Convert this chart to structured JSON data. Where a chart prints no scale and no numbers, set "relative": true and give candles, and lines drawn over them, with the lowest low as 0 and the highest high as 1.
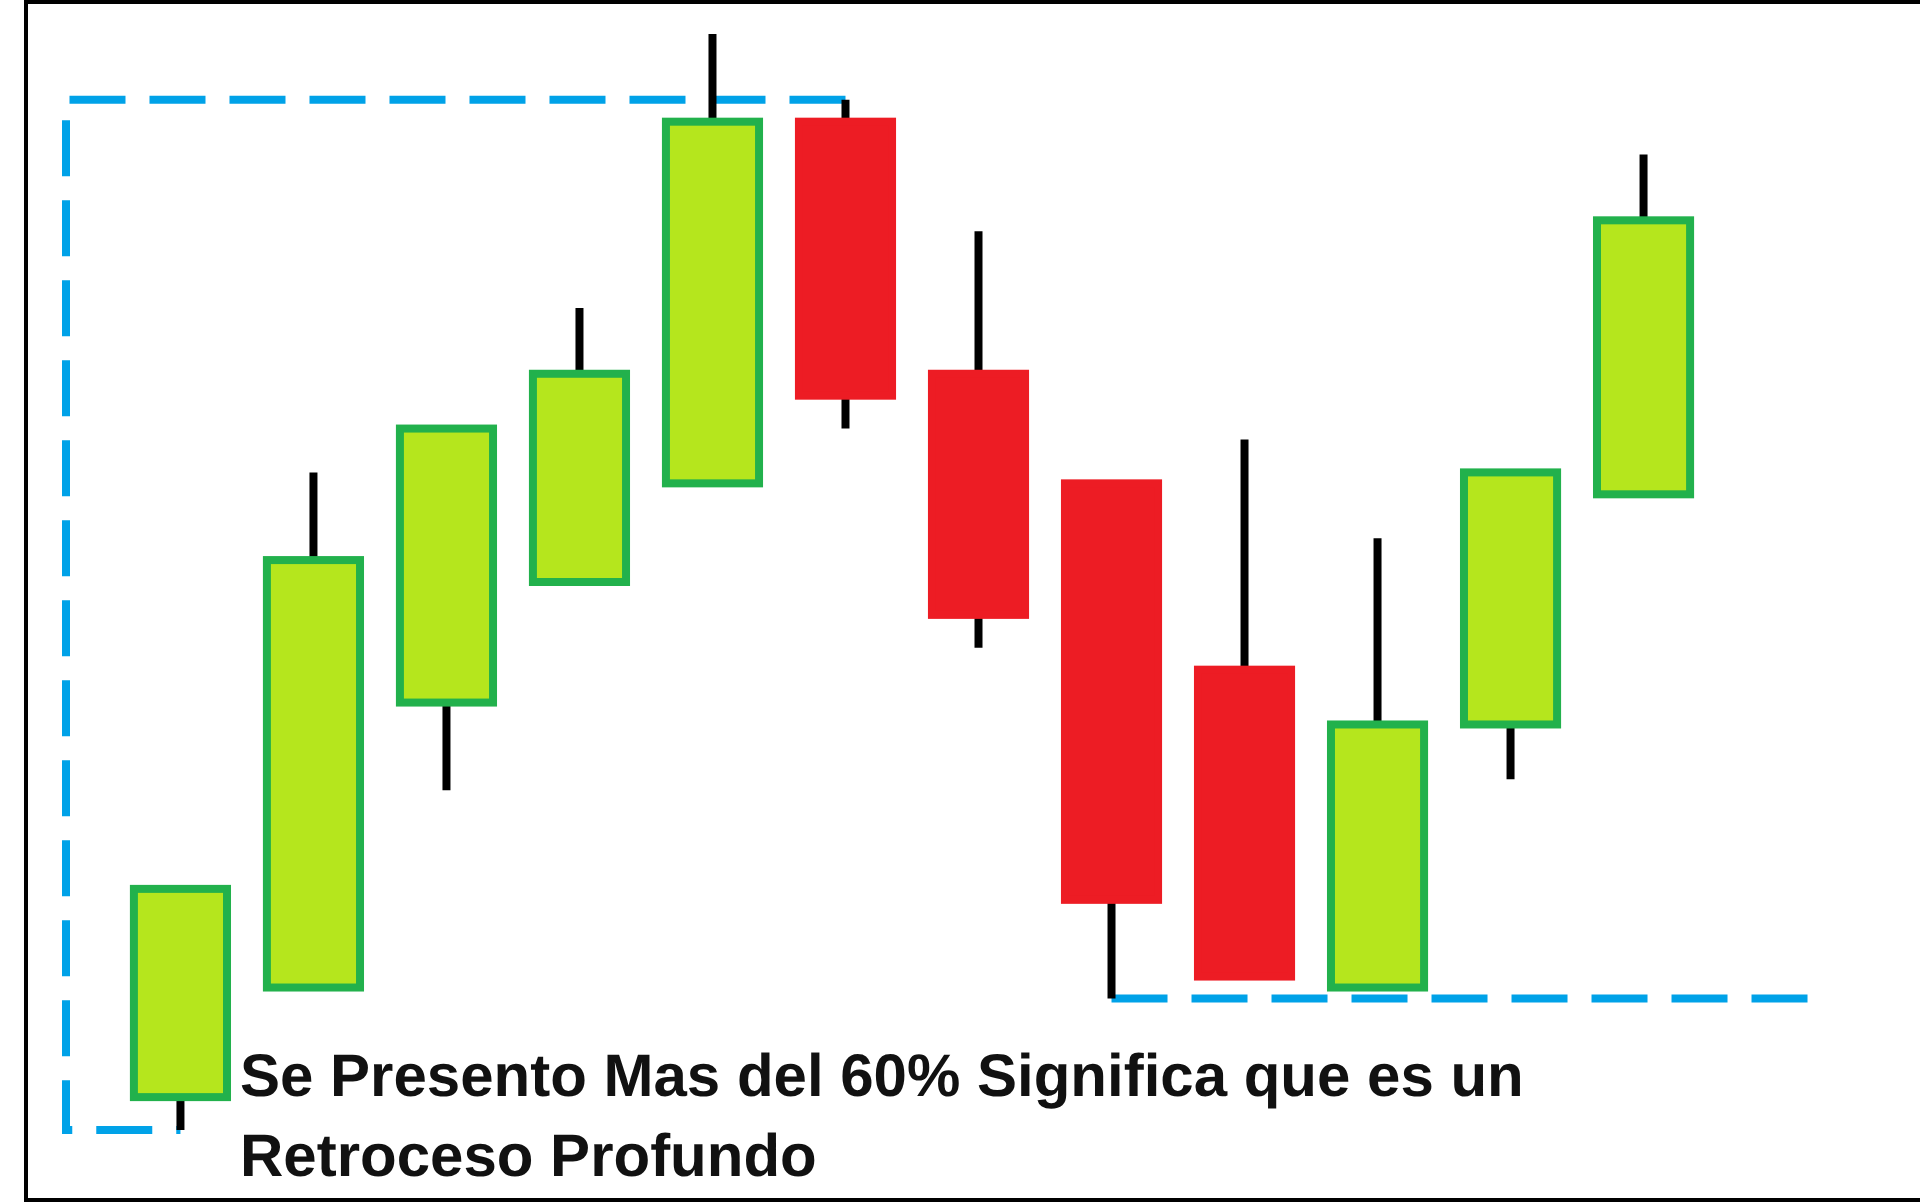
{
  "chart_data": {
    "type": "candlestick",
    "relative": true,
    "categories": [
      null,
      null,
      null,
      null,
      null,
      null,
      null,
      null,
      null,
      null,
      null,
      null
    ],
    "ohlc": [
      [
        0.03,
        0.22,
        0,
        0.22
      ],
      [
        0.13,
        0.6,
        0.13,
        0.52
      ],
      [
        0.39,
        0.64,
        0.31,
        0.64
      ],
      [
        0.5,
        0.75,
        0.5,
        0.69
      ],
      [
        0.59,
        1,
        0.59,
        0.92
      ],
      [
        0.92,
        0.94,
        0.64,
        0.67
      ],
      [
        0.69,
        0.82,
        0.44,
        0.47
      ],
      [
        0.59,
        0.59,
        0.12,
        0.21
      ],
      [
        0.42,
        0.63,
        0.14,
        0.14
      ],
      [
        0.13,
        0.54,
        0.13,
        0.37
      ],
      [
        0.37,
        0.6,
        0.32,
        0.6
      ],
      [
        0.58,
        0.89,
        0.58,
        0.83
      ]
    ],
    "colors": [
      "#b5e61d",
      "#b5e61d",
      "#b5e61d",
      "#b5e61d",
      "#b5e61d",
      "#ed1c24",
      "#ed1c24",
      "#ed1c24",
      "#ed1c24",
      "#b5e61d",
      "#b5e61d",
      "#b5e61d"
    ],
    "annotations": [
      "Se Presento Mas del 60% Significa que es un Retroceso Profundo"
    ]
  }
}
